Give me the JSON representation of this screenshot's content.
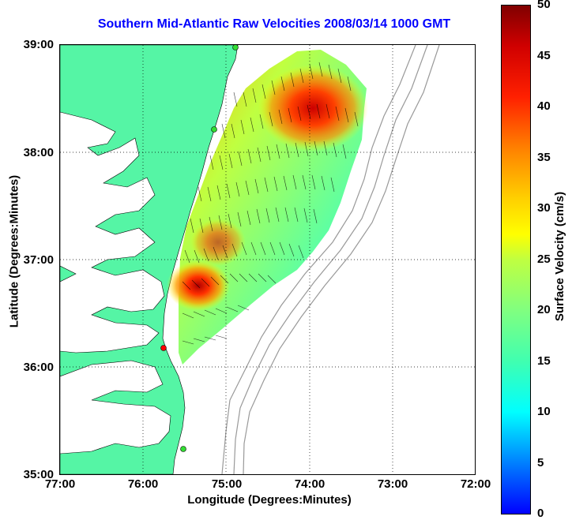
{
  "title": "Southern Mid-Atlantic Raw Velocities 2008/03/14 1000 GMT",
  "x_axis": {
    "label": "Longitude (Degrees:Minutes)",
    "ticks": [
      "77:00",
      "76:00",
      "75:00",
      "74:00",
      "73:00",
      "72:00"
    ]
  },
  "y_axis": {
    "label": "Latitude (Degrees:Minutes)",
    "ticks": [
      "39:00",
      "38:00",
      "37:00",
      "36:00",
      "35:00"
    ]
  },
  "colorbar": {
    "label": "Surface Velocity (cm/s)",
    "ticks": [
      "50",
      "45",
      "40",
      "35",
      "30",
      "25",
      "20",
      "15",
      "10",
      "5",
      "0"
    ],
    "range": [
      0,
      50
    ]
  },
  "colors": {
    "title": "#0000ff",
    "land": "#55f5a5",
    "water": "#ffffff",
    "bathymetry": "#999999",
    "station_red": "#ff0000",
    "station_green": "#33dd33"
  }
}
